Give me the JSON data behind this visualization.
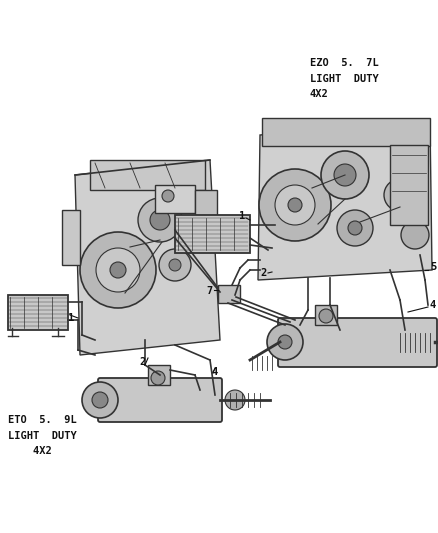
{
  "bg_color": "#ffffff",
  "fig_width": 4.38,
  "fig_height": 5.33,
  "dpi": 100,
  "label_ez0": "EZO  5.  7L\nLIGHT  DUTY\n4X2",
  "label_et0": "ETO  5.  9L\nLIGHT  DUTY\n4X2",
  "text_color": "#111111",
  "font_size_label": 7.5,
  "font_size_num": 7.5,
  "line_color": "#333333",
  "gray_fill": "#c8c8c8",
  "dark_fill": "#888888",
  "light_fill": "#e8e8e8"
}
